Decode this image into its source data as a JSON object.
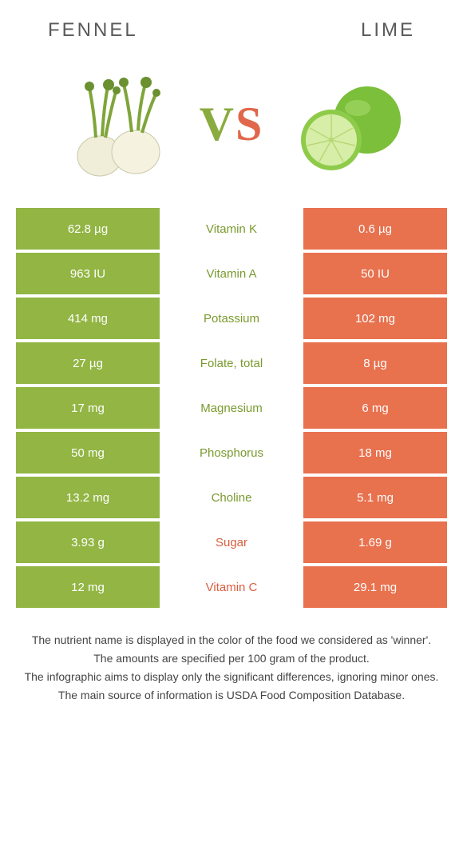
{
  "colors": {
    "left_bg": "#92b544",
    "right_bg": "#e8714e",
    "left_text": "#7a9a2f",
    "right_text": "#d95e3f",
    "title_text": "#5a5a5a"
  },
  "header": {
    "left_title": "Fennel",
    "right_title": "Lime"
  },
  "vs": {
    "v": "V",
    "s": "S"
  },
  "rows": [
    {
      "left": "62.8 µg",
      "label": "Vitamin K",
      "right": "0.6 µg",
      "winner": "left"
    },
    {
      "left": "963 IU",
      "label": "Vitamin A",
      "right": "50 IU",
      "winner": "left"
    },
    {
      "left": "414 mg",
      "label": "Potassium",
      "right": "102 mg",
      "winner": "left"
    },
    {
      "left": "27 µg",
      "label": "Folate, total",
      "right": "8 µg",
      "winner": "left"
    },
    {
      "left": "17 mg",
      "label": "Magnesium",
      "right": "6 mg",
      "winner": "left"
    },
    {
      "left": "50 mg",
      "label": "Phosphorus",
      "right": "18 mg",
      "winner": "left"
    },
    {
      "left": "13.2 mg",
      "label": "Choline",
      "right": "5.1 mg",
      "winner": "left"
    },
    {
      "left": "3.93 g",
      "label": "Sugar",
      "right": "1.69 g",
      "winner": "right"
    },
    {
      "left": "12 mg",
      "label": "Vitamin C",
      "right": "29.1 mg",
      "winner": "right"
    }
  ],
  "footer": {
    "line1": "The nutrient name is displayed in the color of the food we considered as 'winner'.",
    "line2": "The amounts are specified per 100 gram of the product.",
    "line3": "The infographic aims to display only the significant differences, ignoring minor ones.",
    "line4": "The main source of information is USDA Food Composition Database."
  }
}
